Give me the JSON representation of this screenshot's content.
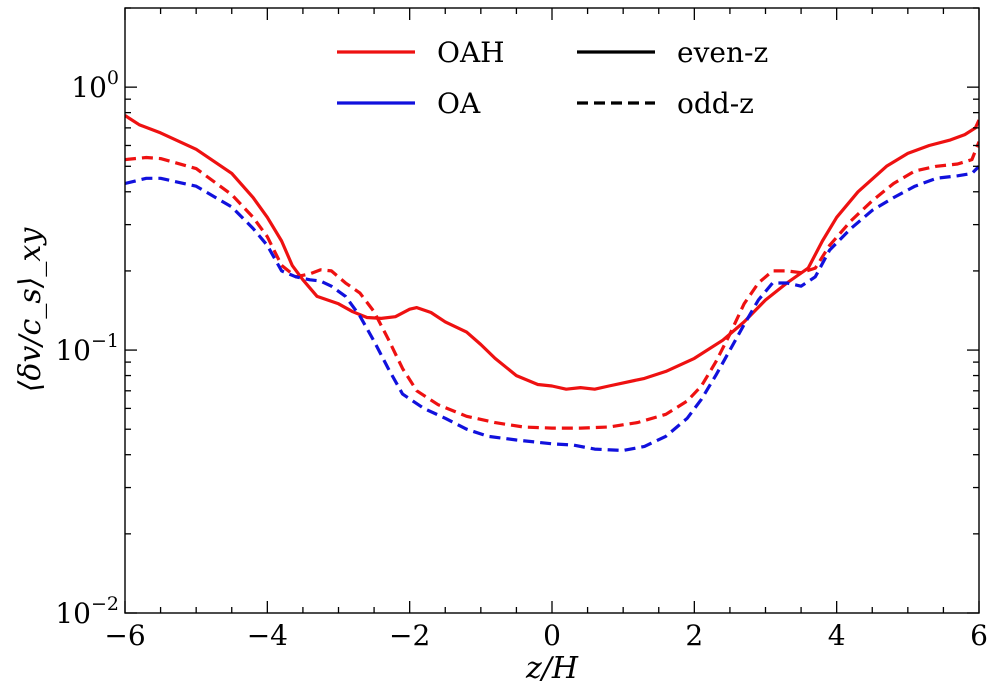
{
  "chart_data": {
    "type": "line",
    "title": "",
    "xlabel": "z/H",
    "ylabel": "⟨δv/c_s⟩_xy",
    "xlim": [
      -6,
      6
    ],
    "ylim": [
      0.01,
      2
    ],
    "yscale": "log",
    "x_ticks": [
      -6,
      -4,
      -2,
      0,
      2,
      4,
      6
    ],
    "x_tick_labels": [
      "−6",
      "−4",
      "−2",
      "0",
      "2",
      "4",
      "6"
    ],
    "y_ticks": [
      {
        "value": 0.01,
        "base": "10",
        "exp": "−2"
      },
      {
        "value": 0.1,
        "base": "10",
        "exp": "−1"
      },
      {
        "value": 1,
        "base": "10",
        "exp": "0"
      }
    ],
    "legend": {
      "location": "top-center",
      "entries": [
        {
          "label": "OAH",
          "color": "#ee1111",
          "style": "solid"
        },
        {
          "label": "OA",
          "color": "#1111dd",
          "style": "solid"
        },
        {
          "label": "even-z",
          "color": "#000000",
          "style": "solid"
        },
        {
          "label": "odd-z",
          "color": "#000000",
          "style": "dashed"
        }
      ]
    },
    "series": [
      {
        "name": "OAH even-z",
        "color": "#ee1111",
        "style": "solid",
        "points": [
          [
            -6.0,
            0.78
          ],
          [
            -5.8,
            0.72
          ],
          [
            -5.5,
            0.67
          ],
          [
            -5.0,
            0.58
          ],
          [
            -4.5,
            0.47
          ],
          [
            -4.2,
            0.38
          ],
          [
            -4.0,
            0.32
          ],
          [
            -3.8,
            0.26
          ],
          [
            -3.65,
            0.21
          ],
          [
            -3.5,
            0.185
          ],
          [
            -3.3,
            0.16
          ],
          [
            -3.0,
            0.15
          ],
          [
            -2.8,
            0.14
          ],
          [
            -2.6,
            0.133
          ],
          [
            -2.4,
            0.132
          ],
          [
            -2.2,
            0.134
          ],
          [
            -2.0,
            0.143
          ],
          [
            -1.9,
            0.145
          ],
          [
            -1.7,
            0.139
          ],
          [
            -1.5,
            0.128
          ],
          [
            -1.2,
            0.117
          ],
          [
            -1.0,
            0.105
          ],
          [
            -0.8,
            0.093
          ],
          [
            -0.5,
            0.08
          ],
          [
            -0.2,
            0.074
          ],
          [
            0.0,
            0.073
          ],
          [
            0.2,
            0.071
          ],
          [
            0.4,
            0.072
          ],
          [
            0.6,
            0.071
          ],
          [
            0.8,
            0.073
          ],
          [
            1.0,
            0.075
          ],
          [
            1.3,
            0.078
          ],
          [
            1.6,
            0.083
          ],
          [
            2.0,
            0.093
          ],
          [
            2.4,
            0.109
          ],
          [
            2.7,
            0.128
          ],
          [
            3.0,
            0.155
          ],
          [
            3.3,
            0.18
          ],
          [
            3.6,
            0.205
          ],
          [
            3.8,
            0.26
          ],
          [
            4.0,
            0.32
          ],
          [
            4.3,
            0.4
          ],
          [
            4.7,
            0.5
          ],
          [
            5.0,
            0.56
          ],
          [
            5.3,
            0.6
          ],
          [
            5.6,
            0.63
          ],
          [
            5.8,
            0.66
          ],
          [
            5.95,
            0.7
          ],
          [
            6.0,
            0.75
          ]
        ]
      },
      {
        "name": "OAH odd-z",
        "color": "#ee1111",
        "style": "dashed",
        "points": [
          [
            -6.0,
            0.53
          ],
          [
            -5.7,
            0.54
          ],
          [
            -5.5,
            0.535
          ],
          [
            -5.0,
            0.49
          ],
          [
            -4.5,
            0.39
          ],
          [
            -4.2,
            0.32
          ],
          [
            -4.0,
            0.27
          ],
          [
            -3.8,
            0.21
          ],
          [
            -3.6,
            0.19
          ],
          [
            -3.4,
            0.195
          ],
          [
            -3.25,
            0.202
          ],
          [
            -3.1,
            0.2
          ],
          [
            -2.9,
            0.18
          ],
          [
            -2.7,
            0.165
          ],
          [
            -2.5,
            0.14
          ],
          [
            -2.3,
            0.11
          ],
          [
            -2.1,
            0.085
          ],
          [
            -1.9,
            0.07
          ],
          [
            -1.6,
            0.062
          ],
          [
            -1.2,
            0.056
          ],
          [
            -0.8,
            0.053
          ],
          [
            -0.4,
            0.051
          ],
          [
            0.0,
            0.0505
          ],
          [
            0.4,
            0.0505
          ],
          [
            0.8,
            0.051
          ],
          [
            1.2,
            0.053
          ],
          [
            1.6,
            0.057
          ],
          [
            1.9,
            0.064
          ],
          [
            2.1,
            0.073
          ],
          [
            2.3,
            0.09
          ],
          [
            2.5,
            0.115
          ],
          [
            2.7,
            0.15
          ],
          [
            2.9,
            0.18
          ],
          [
            3.1,
            0.2
          ],
          [
            3.3,
            0.2
          ],
          [
            3.5,
            0.197
          ],
          [
            3.7,
            0.205
          ],
          [
            3.9,
            0.25
          ],
          [
            4.2,
            0.31
          ],
          [
            4.5,
            0.37
          ],
          [
            4.8,
            0.43
          ],
          [
            5.1,
            0.48
          ],
          [
            5.4,
            0.5
          ],
          [
            5.7,
            0.51
          ],
          [
            5.9,
            0.53
          ],
          [
            6.0,
            0.62
          ]
        ]
      },
      {
        "name": "OA odd-z",
        "color": "#1111dd",
        "style": "dashed",
        "points": [
          [
            -6.0,
            0.43
          ],
          [
            -5.7,
            0.45
          ],
          [
            -5.5,
            0.45
          ],
          [
            -5.0,
            0.42
          ],
          [
            -4.5,
            0.35
          ],
          [
            -4.2,
            0.29
          ],
          [
            -4.0,
            0.25
          ],
          [
            -3.8,
            0.2
          ],
          [
            -3.6,
            0.19
          ],
          [
            -3.4,
            0.185
          ],
          [
            -3.25,
            0.183
          ],
          [
            -3.1,
            0.175
          ],
          [
            -2.9,
            0.16
          ],
          [
            -2.7,
            0.135
          ],
          [
            -2.5,
            0.108
          ],
          [
            -2.3,
            0.085
          ],
          [
            -2.1,
            0.068
          ],
          [
            -1.8,
            0.06
          ],
          [
            -1.5,
            0.055
          ],
          [
            -1.2,
            0.05
          ],
          [
            -0.9,
            0.047
          ],
          [
            -0.5,
            0.0455
          ],
          [
            0.0,
            0.044
          ],
          [
            0.3,
            0.0435
          ],
          [
            0.6,
            0.042
          ],
          [
            1.0,
            0.0415
          ],
          [
            1.3,
            0.043
          ],
          [
            1.6,
            0.047
          ],
          [
            1.9,
            0.055
          ],
          [
            2.1,
            0.065
          ],
          [
            2.3,
            0.08
          ],
          [
            2.5,
            0.1
          ],
          [
            2.7,
            0.125
          ],
          [
            2.9,
            0.155
          ],
          [
            3.1,
            0.18
          ],
          [
            3.3,
            0.18
          ],
          [
            3.5,
            0.175
          ],
          [
            3.7,
            0.19
          ],
          [
            3.9,
            0.24
          ],
          [
            4.2,
            0.29
          ],
          [
            4.5,
            0.34
          ],
          [
            4.8,
            0.38
          ],
          [
            5.1,
            0.42
          ],
          [
            5.4,
            0.45
          ],
          [
            5.7,
            0.46
          ],
          [
            5.9,
            0.47
          ],
          [
            6.0,
            0.5
          ]
        ]
      }
    ]
  }
}
